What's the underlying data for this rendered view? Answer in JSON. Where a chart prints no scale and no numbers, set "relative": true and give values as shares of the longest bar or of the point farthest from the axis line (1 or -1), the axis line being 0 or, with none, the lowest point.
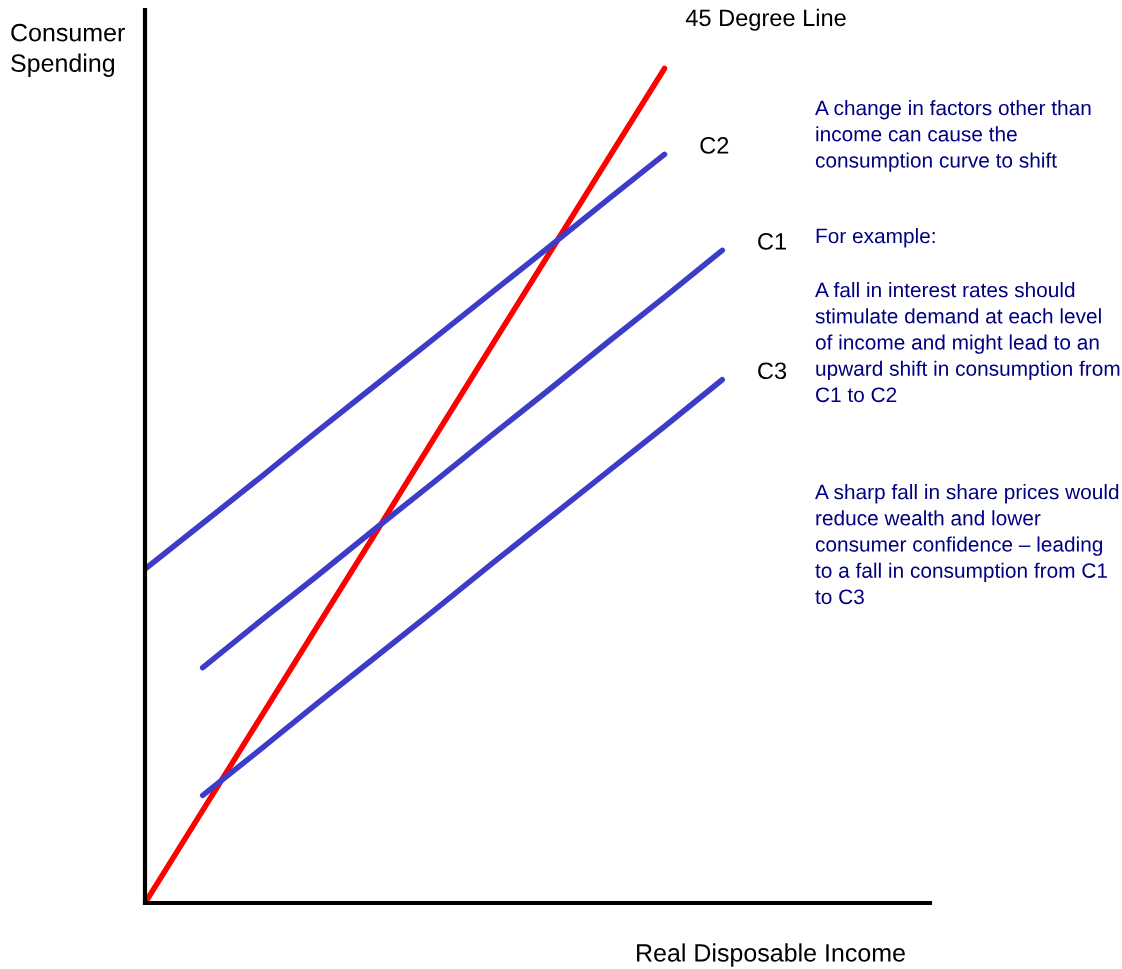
{
  "chart_data": {
    "type": "line",
    "relative": true,
    "xlabel": "Real Disposable Income",
    "ylabel": "Consumer Spending",
    "marker": "none",
    "line_style": "solid",
    "categories": [
      null,
      null,
      null,
      null,
      null,
      null,
      null,
      null,
      null,
      null,
      null
    ],
    "series": [
      {
        "name": "45 Degree Line",
        "color": "#ff0000",
        "values": [
          0,
          0.111,
          0.222,
          0.333,
          0.444,
          0.556,
          0.667,
          0.778,
          0.889,
          1,
          null
        ]
      },
      {
        "name": "C2",
        "color": "#3c3cc8",
        "values": [
          0.4,
          0.455,
          0.51,
          0.566,
          0.621,
          0.676,
          0.731,
          0.786,
          0.842,
          0.897,
          null
        ]
      },
      {
        "name": "C1",
        "color": "#3c3cc8",
        "values": [
          null,
          0.282,
          0.338,
          0.393,
          0.449,
          0.504,
          0.56,
          0.615,
          0.671,
          0.726,
          0.782
        ]
      },
      {
        "name": "C3",
        "color": "#3c3cc8",
        "values": [
          null,
          0.129,
          0.184,
          0.24,
          0.295,
          0.35,
          0.406,
          0.461,
          0.516,
          0.571,
          0.627
        ]
      }
    ],
    "annotations": [
      "A change in factors other than income can cause the consumption curve to shift",
      "For example:",
      "A fall in interest rates should stimulate demand at each level of income and might lead to an upward shift in consumption from C1 to C2",
      "A sharp fall in share prices would reduce wealth and lower consumer confidence – leading to a fall in consumption from C1 to C3"
    ]
  }
}
